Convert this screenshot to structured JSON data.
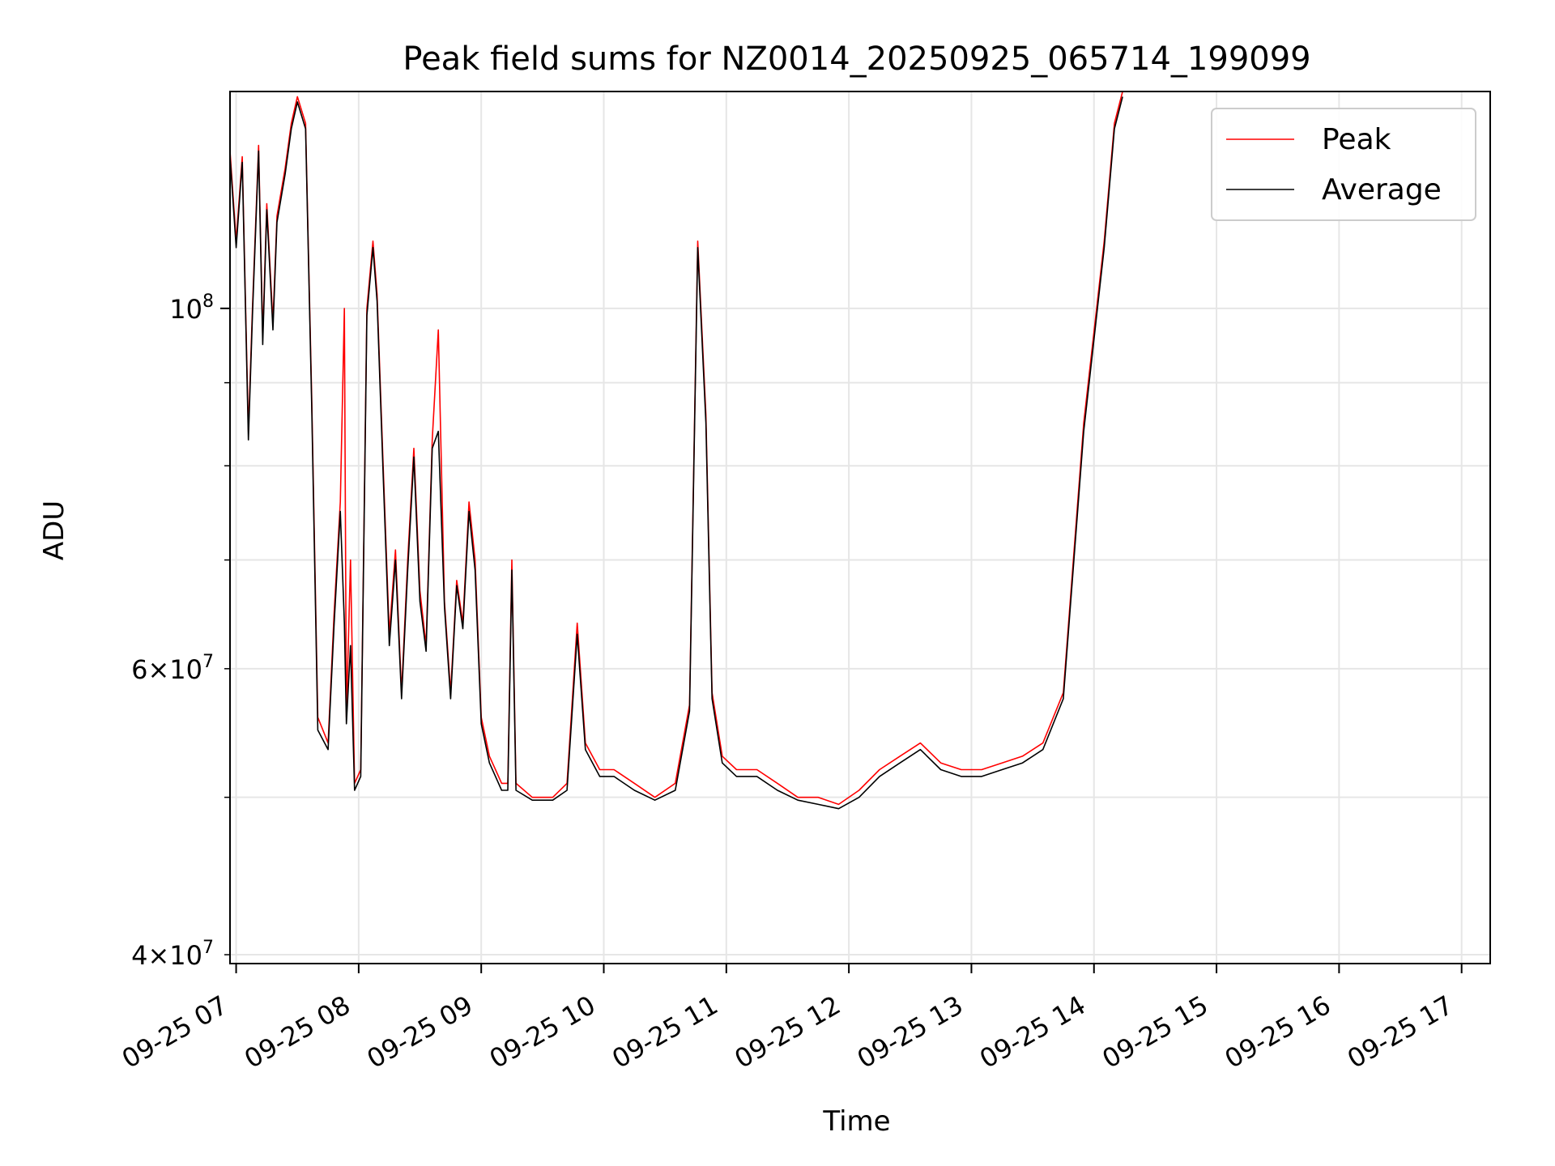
{
  "chart_data": {
    "type": "line",
    "title": "Peak field sums for NZ0014_20250925_065714_199099",
    "xlabel": "Time",
    "ylabel": "ADU",
    "y_scale": "log",
    "grid": true,
    "legend_placement": "top-right",
    "xlim": [
      "2025-09-25 06:57",
      "2025-09-25 17:14"
    ],
    "ylim": [
      39500000,
      136000000
    ],
    "x_ticks": [
      {
        "value": "2025-09-25 07:00",
        "label": "09-25 07"
      },
      {
        "value": "2025-09-25 08:00",
        "label": "09-25 08"
      },
      {
        "value": "2025-09-25 09:00",
        "label": "09-25 09"
      },
      {
        "value": "2025-09-25 10:00",
        "label": "09-25 10"
      },
      {
        "value": "2025-09-25 11:00",
        "label": "09-25 11"
      },
      {
        "value": "2025-09-25 12:00",
        "label": "09-25 12"
      },
      {
        "value": "2025-09-25 13:00",
        "label": "09-25 13"
      },
      {
        "value": "2025-09-25 14:00",
        "label": "09-25 14"
      },
      {
        "value": "2025-09-25 15:00",
        "label": "09-25 15"
      },
      {
        "value": "2025-09-25 16:00",
        "label": "09-25 16"
      },
      {
        "value": "2025-09-25 17:00",
        "label": "09-25 17"
      }
    ],
    "y_ticks_major": [
      {
        "value": 100000000,
        "base": "10",
        "exp": "8"
      }
    ],
    "y_ticks_minor": [
      {
        "value": 40000000,
        "mant": "4",
        "base": "10",
        "exp": "7"
      },
      {
        "value": 50000000,
        "mant": "",
        "base": "",
        "exp": ""
      },
      {
        "value": 60000000,
        "mant": "6",
        "base": "10",
        "exp": "7"
      },
      {
        "value": 70000000,
        "mant": "",
        "base": "",
        "exp": ""
      },
      {
        "value": 80000000,
        "mant": "",
        "base": "",
        "exp": ""
      },
      {
        "value": 90000000,
        "mant": "",
        "base": "",
        "exp": ""
      }
    ],
    "series": [
      {
        "name": "Peak",
        "color": "#ff0000",
        "points": [
          [
            "2025-09-25 06:57",
            125000000
          ],
          [
            "2025-09-25 07:00",
            110000000
          ],
          [
            "2025-09-25 07:03",
            124000000
          ],
          [
            "2025-09-25 07:06",
            84000000
          ],
          [
            "2025-09-25 07:08",
            100000000
          ],
          [
            "2025-09-25 07:11",
            126000000
          ],
          [
            "2025-09-25 07:13",
            96000000
          ],
          [
            "2025-09-25 07:15",
            116000000
          ],
          [
            "2025-09-25 07:18",
            98000000
          ],
          [
            "2025-09-25 07:20",
            114000000
          ],
          [
            "2025-09-25 07:24",
            122000000
          ],
          [
            "2025-09-25 07:27",
            130000000
          ],
          [
            "2025-09-25 07:30",
            135000000
          ],
          [
            "2025-09-25 07:34",
            130000000
          ],
          [
            "2025-09-25 07:37",
            88000000
          ],
          [
            "2025-09-25 07:40",
            56000000
          ],
          [
            "2025-09-25 07:45",
            54000000
          ],
          [
            "2025-09-25 07:48",
            65000000
          ],
          [
            "2025-09-25 07:51",
            76000000
          ],
          [
            "2025-09-25 07:53",
            100000000
          ],
          [
            "2025-09-25 07:54",
            56000000
          ],
          [
            "2025-09-25 07:56",
            70000000
          ],
          [
            "2025-09-25 07:58",
            51000000
          ],
          [
            "2025-09-25 08:01",
            52000000
          ],
          [
            "2025-09-25 08:04",
            100000000
          ],
          [
            "2025-09-25 08:07",
            110000000
          ],
          [
            "2025-09-25 08:09",
            102000000
          ],
          [
            "2025-09-25 08:12",
            80000000
          ],
          [
            "2025-09-25 08:15",
            63000000
          ],
          [
            "2025-09-25 08:18",
            71000000
          ],
          [
            "2025-09-25 08:21",
            58000000
          ],
          [
            "2025-09-25 08:24",
            70000000
          ],
          [
            "2025-09-25 08:27",
            82000000
          ],
          [
            "2025-09-25 08:30",
            67000000
          ],
          [
            "2025-09-25 08:33",
            62000000
          ],
          [
            "2025-09-25 08:36",
            83000000
          ],
          [
            "2025-09-25 08:39",
            97000000
          ],
          [
            "2025-09-25 08:42",
            66000000
          ],
          [
            "2025-09-25 08:45",
            58000000
          ],
          [
            "2025-09-25 08:48",
            68000000
          ],
          [
            "2025-09-25 08:51",
            64000000
          ],
          [
            "2025-09-25 08:54",
            76000000
          ],
          [
            "2025-09-25 08:57",
            70000000
          ],
          [
            "2025-09-25 09:00",
            56000000
          ],
          [
            "2025-09-25 09:04",
            53000000
          ],
          [
            "2025-09-25 09:07",
            52000000
          ],
          [
            "2025-09-25 09:10",
            51000000
          ],
          [
            "2025-09-25 09:13",
            51000000
          ],
          [
            "2025-09-25 09:15",
            70000000
          ],
          [
            "2025-09-25 09:17",
            51000000
          ],
          [
            "2025-09-25 09:25",
            50000000
          ],
          [
            "2025-09-25 09:35",
            50000000
          ],
          [
            "2025-09-25 09:42",
            51000000
          ],
          [
            "2025-09-25 09:47",
            64000000
          ],
          [
            "2025-09-25 09:51",
            54000000
          ],
          [
            "2025-09-25 09:58",
            52000000
          ],
          [
            "2025-09-25 10:05",
            52000000
          ],
          [
            "2025-09-25 10:15",
            51000000
          ],
          [
            "2025-09-25 10:25",
            50000000
          ],
          [
            "2025-09-25 10:35",
            51000000
          ],
          [
            "2025-09-25 10:42",
            57000000
          ],
          [
            "2025-09-25 10:46",
            110000000
          ],
          [
            "2025-09-25 10:50",
            86000000
          ],
          [
            "2025-09-25 10:53",
            58000000
          ],
          [
            "2025-09-25 10:58",
            53000000
          ],
          [
            "2025-09-25 11:05",
            52000000
          ],
          [
            "2025-09-25 11:15",
            52000000
          ],
          [
            "2025-09-25 11:25",
            51000000
          ],
          [
            "2025-09-25 11:35",
            50000000
          ],
          [
            "2025-09-25 11:45",
            50000000
          ],
          [
            "2025-09-25 11:55",
            49500000
          ],
          [
            "2025-09-25 12:05",
            50500000
          ],
          [
            "2025-09-25 12:15",
            52000000
          ],
          [
            "2025-09-25 12:25",
            53000000
          ],
          [
            "2025-09-25 12:35",
            54000000
          ],
          [
            "2025-09-25 12:45",
            52500000
          ],
          [
            "2025-09-25 12:55",
            52000000
          ],
          [
            "2025-09-25 13:05",
            52000000
          ],
          [
            "2025-09-25 13:15",
            52500000
          ],
          [
            "2025-09-25 13:25",
            53000000
          ],
          [
            "2025-09-25 13:35",
            54000000
          ],
          [
            "2025-09-25 13:45",
            58000000
          ],
          [
            "2025-09-25 13:55",
            85000000
          ],
          [
            "2025-09-25 14:05",
            110000000
          ],
          [
            "2025-09-25 14:10",
            130000000
          ],
          [
            "2025-09-25 14:14",
            136000000
          ]
        ]
      },
      {
        "name": "Average",
        "color": "#000000",
        "points": [
          [
            "2025-09-25 06:57",
            124000000
          ],
          [
            "2025-09-25 07:00",
            109000000
          ],
          [
            "2025-09-25 07:03",
            123000000
          ],
          [
            "2025-09-25 07:06",
            83000000
          ],
          [
            "2025-09-25 07:08",
            99000000
          ],
          [
            "2025-09-25 07:11",
            125000000
          ],
          [
            "2025-09-25 07:13",
            95000000
          ],
          [
            "2025-09-25 07:15",
            115000000
          ],
          [
            "2025-09-25 07:18",
            97000000
          ],
          [
            "2025-09-25 07:20",
            113000000
          ],
          [
            "2025-09-25 07:24",
            121000000
          ],
          [
            "2025-09-25 07:27",
            129000000
          ],
          [
            "2025-09-25 07:30",
            134000000
          ],
          [
            "2025-09-25 07:34",
            129000000
          ],
          [
            "2025-09-25 07:37",
            87000000
          ],
          [
            "2025-09-25 07:40",
            55000000
          ],
          [
            "2025-09-25 07:45",
            53500000
          ],
          [
            "2025-09-25 07:48",
            64000000
          ],
          [
            "2025-09-25 07:51",
            75000000
          ],
          [
            "2025-09-25 07:53",
            64000000
          ],
          [
            "2025-09-25 07:54",
            55500000
          ],
          [
            "2025-09-25 07:56",
            62000000
          ],
          [
            "2025-09-25 07:58",
            50500000
          ],
          [
            "2025-09-25 08:01",
            51500000
          ],
          [
            "2025-09-25 08:04",
            99000000
          ],
          [
            "2025-09-25 08:07",
            109000000
          ],
          [
            "2025-09-25 08:09",
            101000000
          ],
          [
            "2025-09-25 08:12",
            79000000
          ],
          [
            "2025-09-25 08:15",
            62000000
          ],
          [
            "2025-09-25 08:18",
            70000000
          ],
          [
            "2025-09-25 08:21",
            57500000
          ],
          [
            "2025-09-25 08:24",
            69000000
          ],
          [
            "2025-09-25 08:27",
            81000000
          ],
          [
            "2025-09-25 08:30",
            66000000
          ],
          [
            "2025-09-25 08:33",
            61500000
          ],
          [
            "2025-09-25 08:36",
            82000000
          ],
          [
            "2025-09-25 08:39",
            84000000
          ],
          [
            "2025-09-25 08:42",
            65500000
          ],
          [
            "2025-09-25 08:45",
            57500000
          ],
          [
            "2025-09-25 08:48",
            67500000
          ],
          [
            "2025-09-25 08:51",
            63500000
          ],
          [
            "2025-09-25 08:54",
            75000000
          ],
          [
            "2025-09-25 08:57",
            69000000
          ],
          [
            "2025-09-25 09:00",
            55500000
          ],
          [
            "2025-09-25 09:04",
            52500000
          ],
          [
            "2025-09-25 09:07",
            51500000
          ],
          [
            "2025-09-25 09:10",
            50500000
          ],
          [
            "2025-09-25 09:13",
            50500000
          ],
          [
            "2025-09-25 09:15",
            69000000
          ],
          [
            "2025-09-25 09:17",
            50500000
          ],
          [
            "2025-09-25 09:25",
            49800000
          ],
          [
            "2025-09-25 09:35",
            49800000
          ],
          [
            "2025-09-25 09:42",
            50500000
          ],
          [
            "2025-09-25 09:47",
            63000000
          ],
          [
            "2025-09-25 09:51",
            53500000
          ],
          [
            "2025-09-25 09:58",
            51500000
          ],
          [
            "2025-09-25 10:05",
            51500000
          ],
          [
            "2025-09-25 10:15",
            50500000
          ],
          [
            "2025-09-25 10:25",
            49800000
          ],
          [
            "2025-09-25 10:35",
            50500000
          ],
          [
            "2025-09-25 10:42",
            56500000
          ],
          [
            "2025-09-25 10:46",
            109000000
          ],
          [
            "2025-09-25 10:50",
            85000000
          ],
          [
            "2025-09-25 10:53",
            57500000
          ],
          [
            "2025-09-25 10:58",
            52500000
          ],
          [
            "2025-09-25 11:05",
            51500000
          ],
          [
            "2025-09-25 11:15",
            51500000
          ],
          [
            "2025-09-25 11:25",
            50500000
          ],
          [
            "2025-09-25 11:35",
            49800000
          ],
          [
            "2025-09-25 11:45",
            49500000
          ],
          [
            "2025-09-25 11:55",
            49200000
          ],
          [
            "2025-09-25 12:05",
            50000000
          ],
          [
            "2025-09-25 12:15",
            51500000
          ],
          [
            "2025-09-25 12:25",
            52500000
          ],
          [
            "2025-09-25 12:35",
            53500000
          ],
          [
            "2025-09-25 12:45",
            52000000
          ],
          [
            "2025-09-25 12:55",
            51500000
          ],
          [
            "2025-09-25 13:05",
            51500000
          ],
          [
            "2025-09-25 13:15",
            52000000
          ],
          [
            "2025-09-25 13:25",
            52500000
          ],
          [
            "2025-09-25 13:35",
            53500000
          ],
          [
            "2025-09-25 13:45",
            57500000
          ],
          [
            "2025-09-25 13:55",
            84000000
          ],
          [
            "2025-09-25 14:05",
            109000000
          ],
          [
            "2025-09-25 14:10",
            129000000
          ],
          [
            "2025-09-25 14:14",
            135000000
          ]
        ]
      }
    ]
  }
}
